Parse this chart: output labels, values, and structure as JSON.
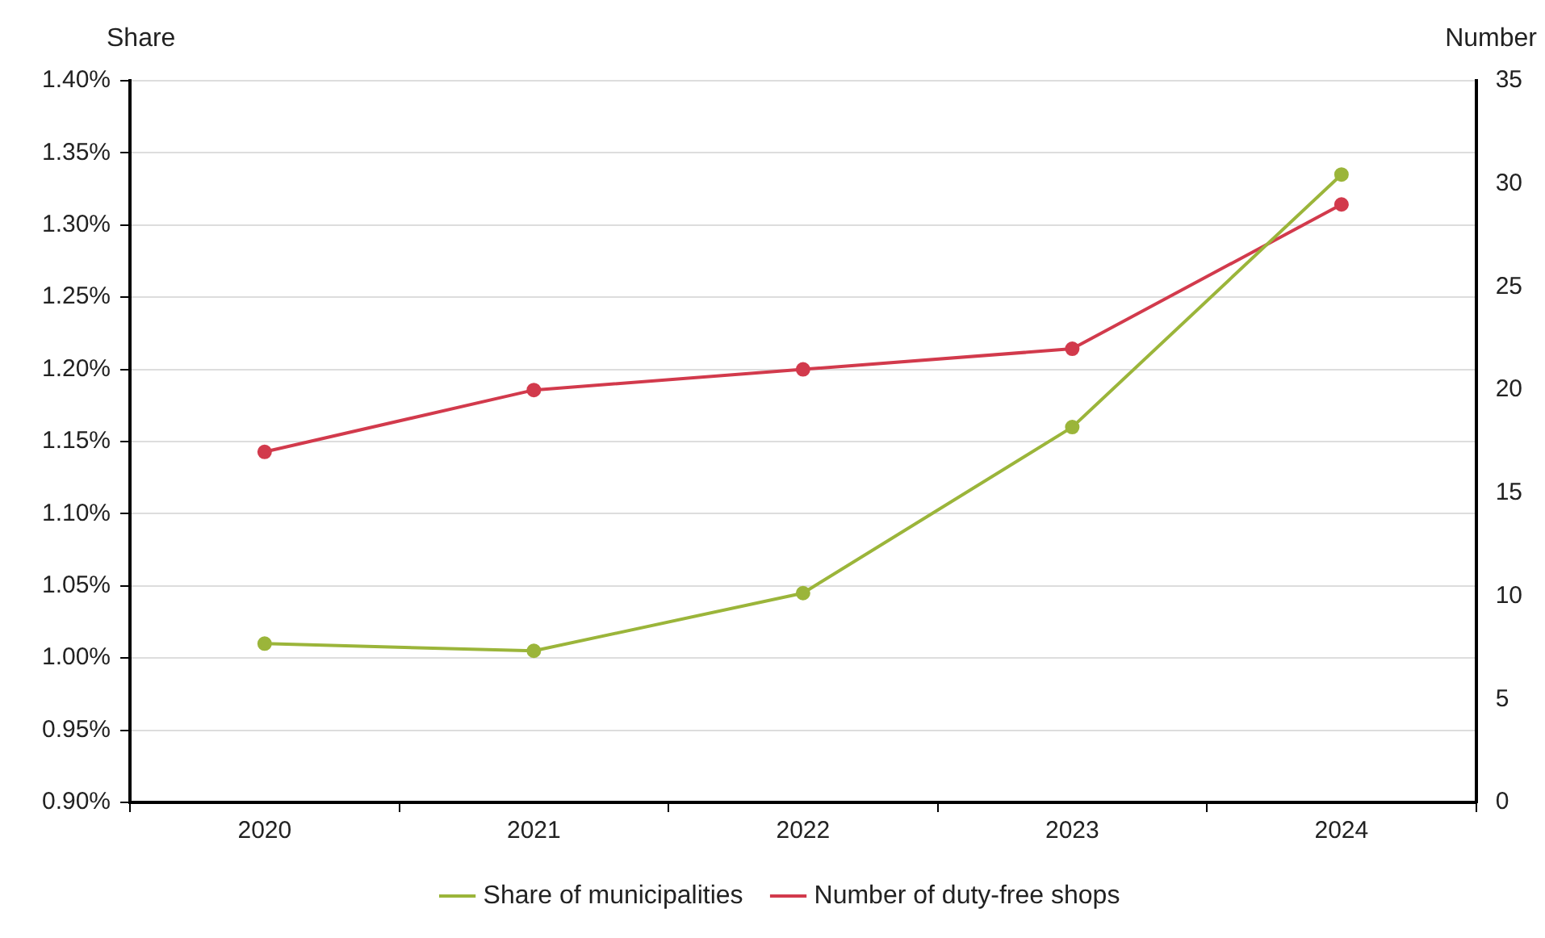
{
  "chart_data": {
    "type": "line",
    "ylabel": "Share",
    "y2label": "Number",
    "categories": [
      "2020",
      "2021",
      "2022",
      "2023",
      "2024"
    ],
    "series": [
      {
        "name": "Share of municipalities",
        "color": "#9bb53a",
        "values": [
          1.01,
          1.005,
          1.045,
          1.16,
          1.335
        ]
      },
      {
        "name": "Number of duty-free shops",
        "color": "#d23a4c",
        "axis": "y2",
        "values": [
          17,
          20,
          21,
          22,
          29
        ]
      }
    ],
    "ylim": [
      0.9,
      1.4
    ],
    "yticks": [
      {
        "value": 0.9,
        "label": "0.90%"
      },
      {
        "value": 0.95,
        "label": "0.95%"
      },
      {
        "value": 1.0,
        "label": "1.00%"
      },
      {
        "value": 1.05,
        "label": "1.05%"
      },
      {
        "value": 1.1,
        "label": "1.10%"
      },
      {
        "value": 1.15,
        "label": "1.15%"
      },
      {
        "value": 1.2,
        "label": "1.20%"
      },
      {
        "value": 1.25,
        "label": "1.25%"
      },
      {
        "value": 1.3,
        "label": "1.30%"
      },
      {
        "value": 1.35,
        "label": "1.35%"
      },
      {
        "value": 1.4,
        "label": "1.40%"
      }
    ],
    "y2lim": [
      0,
      35
    ],
    "y2ticks": [
      0,
      5,
      10,
      15,
      20,
      25,
      30,
      35
    ],
    "grid": "y",
    "legend": "bottom",
    "marker": "circle",
    "line_style": "solid"
  }
}
